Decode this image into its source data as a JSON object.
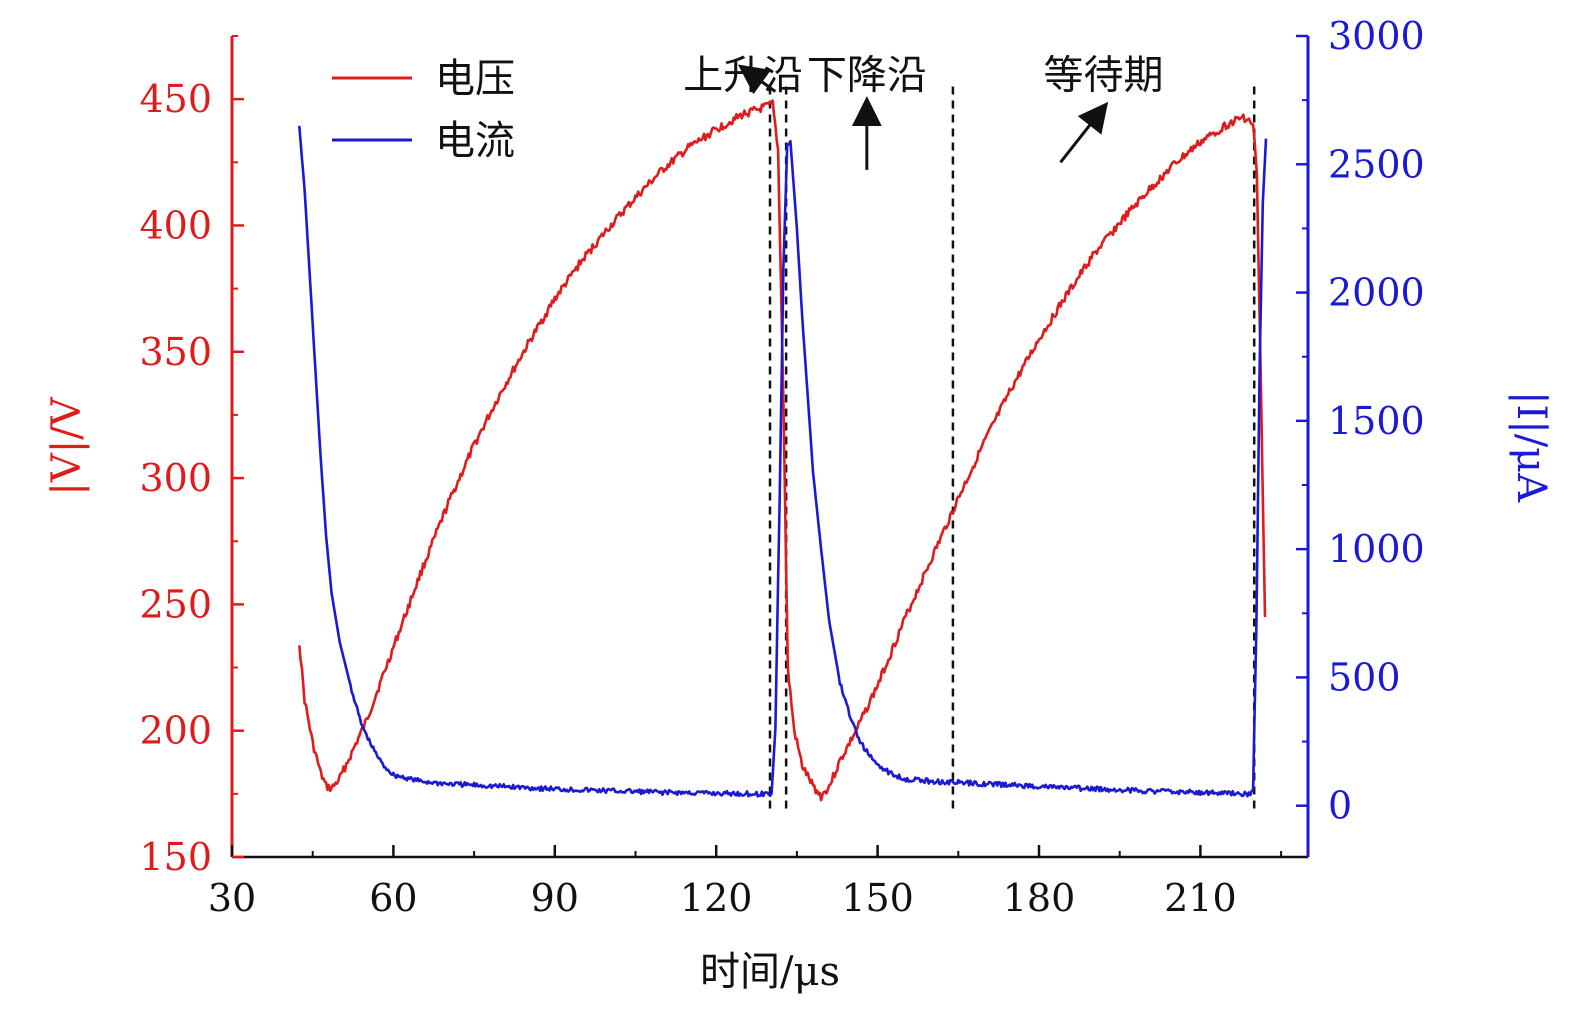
{
  "chart_data": {
    "type": "line",
    "title": "",
    "xlabel": "时间/μs",
    "ylabel_left": "|V|/V",
    "ylabel_right": "|I|/μA",
    "xlim": [
      30,
      230
    ],
    "ylim_left": [
      150,
      475
    ],
    "ylim_right": [
      -200,
      3000
    ],
    "x_ticks": [
      "30",
      "60",
      "90",
      "120",
      "150",
      "180",
      "210"
    ],
    "y_left_ticks": [
      "150",
      "200",
      "250",
      "300",
      "350",
      "400",
      "450"
    ],
    "y_right_ticks": [
      "0",
      "500",
      "1000",
      "1500",
      "2000",
      "2500",
      "3000"
    ],
    "legend": [
      {
        "label": "电压",
        "color": "#e01b1b"
      },
      {
        "label": "电流",
        "color": "#1a1ad6"
      }
    ],
    "series": [
      {
        "name": "电压",
        "axis": "left",
        "color": "#e01b1b",
        "points": [
          [
            42.5,
            235
          ],
          [
            43.5,
            212
          ],
          [
            45,
            195
          ],
          [
            46.5,
            183
          ],
          [
            47.5,
            178
          ],
          [
            48.5,
            177
          ],
          [
            50,
            181
          ],
          [
            52,
            190
          ],
          [
            55,
            204
          ],
          [
            60,
            233
          ],
          [
            65,
            262
          ],
          [
            70,
            289
          ],
          [
            75,
            313
          ],
          [
            80,
            334
          ],
          [
            85,
            353
          ],
          [
            90,
            371
          ],
          [
            95,
            386
          ],
          [
            100,
            399
          ],
          [
            105,
            411
          ],
          [
            110,
            422
          ],
          [
            115,
            431
          ],
          [
            120,
            438
          ],
          [
            125,
            444
          ],
          [
            128,
            446
          ],
          [
            130.5,
            448
          ],
          [
            131.5,
            430
          ],
          [
            132.5,
            330
          ],
          [
            133.3,
            225
          ],
          [
            134.5,
            200
          ],
          [
            136,
            186
          ],
          [
            138,
            178
          ],
          [
            139.5,
            174
          ],
          [
            141,
            178
          ],
          [
            143,
            188
          ],
          [
            146,
            200
          ],
          [
            150,
            218
          ],
          [
            155,
            244
          ],
          [
            160,
            268
          ],
          [
            165,
            292
          ],
          [
            170,
            315
          ],
          [
            175,
            336
          ],
          [
            180,
            355
          ],
          [
            185,
            372
          ],
          [
            190,
            388
          ],
          [
            195,
            401
          ],
          [
            200,
            413
          ],
          [
            205,
            424
          ],
          [
            210,
            433
          ],
          [
            215,
            440
          ],
          [
            218,
            443
          ],
          [
            219.8,
            440
          ],
          [
            220.5,
            420
          ],
          [
            221.3,
            330
          ],
          [
            222,
            245
          ]
        ]
      },
      {
        "name": "电流",
        "axis": "right",
        "color": "#1a1ad6",
        "points": [
          [
            42.5,
            2650
          ],
          [
            43.5,
            2400
          ],
          [
            44.5,
            2050
          ],
          [
            45.5,
            1700
          ],
          [
            46.5,
            1350
          ],
          [
            47.5,
            1050
          ],
          [
            48.5,
            830
          ],
          [
            50,
            640
          ],
          [
            52,
            470
          ],
          [
            54,
            320
          ],
          [
            56,
            230
          ],
          [
            58,
            160
          ],
          [
            60,
            120
          ],
          [
            65,
            95
          ],
          [
            70,
            85
          ],
          [
            80,
            75
          ],
          [
            90,
            65
          ],
          [
            100,
            58
          ],
          [
            110,
            52
          ],
          [
            120,
            48
          ],
          [
            129,
            45
          ],
          [
            130.3,
            48
          ],
          [
            131,
            300
          ],
          [
            131.8,
            1200
          ],
          [
            132.5,
            2100
          ],
          [
            133.2,
            2580
          ],
          [
            133.8,
            2590
          ],
          [
            135,
            2250
          ],
          [
            136,
            1900
          ],
          [
            137,
            1600
          ],
          [
            138,
            1300
          ],
          [
            139.5,
            1000
          ],
          [
            141,
            720
          ],
          [
            143,
            480
          ],
          [
            145,
            340
          ],
          [
            147,
            240
          ],
          [
            149,
            180
          ],
          [
            152,
            130
          ],
          [
            155,
            105
          ],
          [
            160,
            95
          ],
          [
            170,
            85
          ],
          [
            180,
            75
          ],
          [
            190,
            65
          ],
          [
            200,
            58
          ],
          [
            210,
            52
          ],
          [
            219,
            45
          ],
          [
            219.8,
            60
          ],
          [
            220.4,
            700
          ],
          [
            221,
            1700
          ],
          [
            221.6,
            2350
          ],
          [
            222.2,
            2600
          ]
        ]
      }
    ],
    "vlines_x": [
      130,
      133,
      164,
      220
    ],
    "annotations": [
      {
        "text": "上升沿",
        "x": 125,
        "y_left": 459,
        "arrow_from": [
          131,
          453
        ],
        "arrow_to": [
          124.5,
          463
        ]
      },
      {
        "text": "下降沿",
        "x": 148,
        "y_left": 459,
        "arrow_from": [
          148,
          422
        ],
        "arrow_to": [
          148,
          450
        ]
      },
      {
        "text": "等待期",
        "x": 192,
        "y_left": 459,
        "arrow_from": [
          184,
          425
        ],
        "arrow_to": [
          192.5,
          448
        ]
      }
    ]
  }
}
